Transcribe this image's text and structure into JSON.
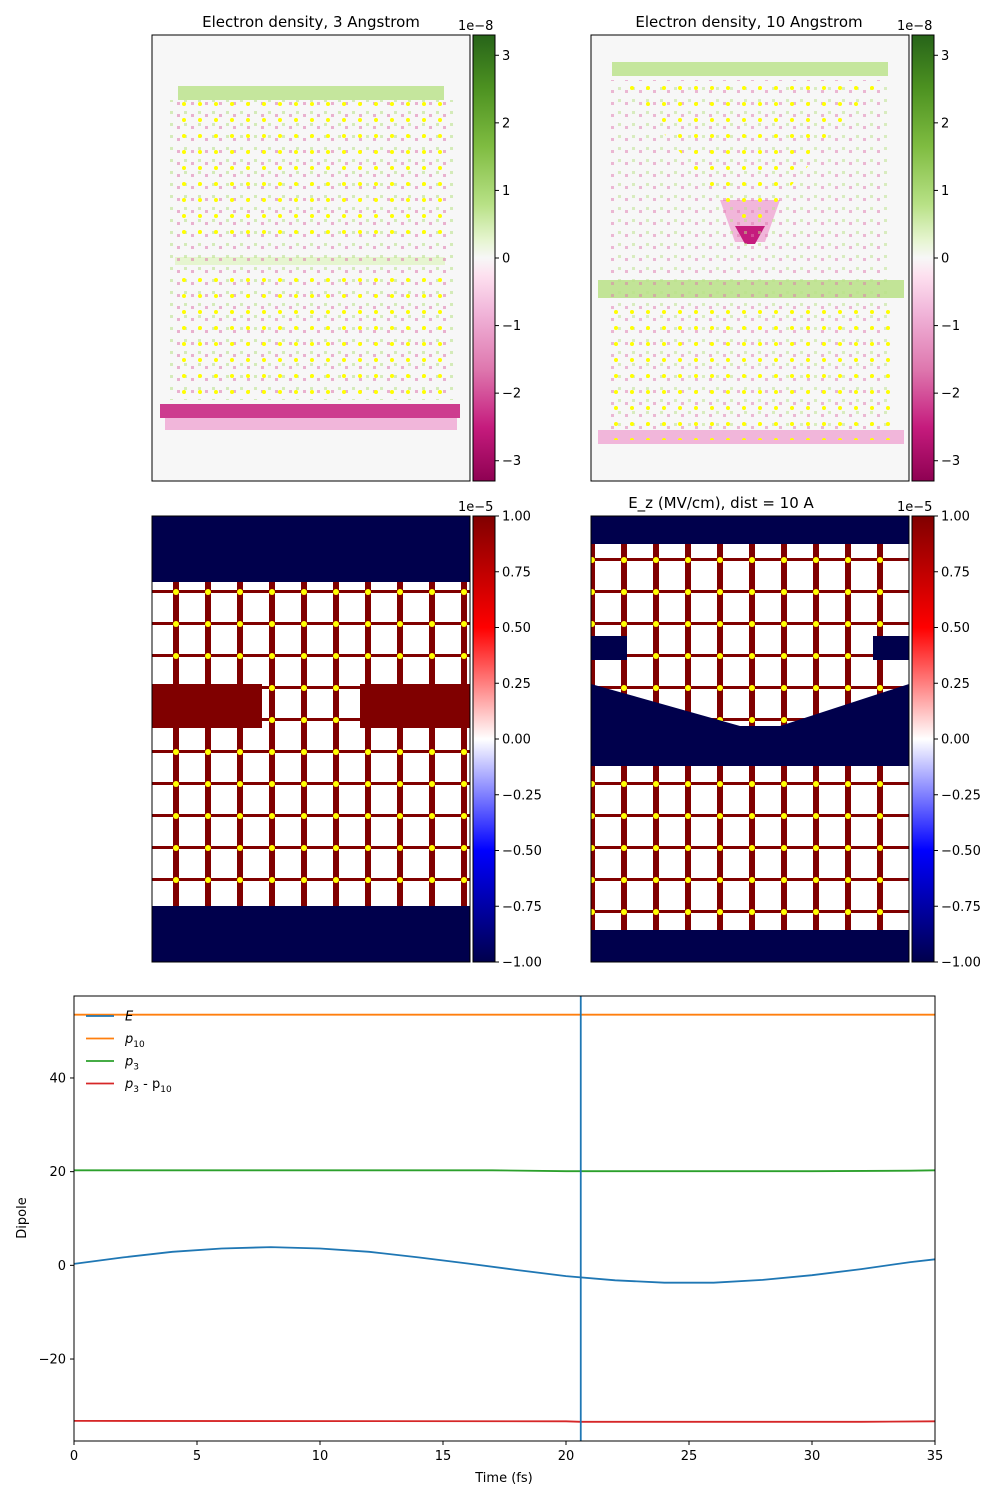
{
  "colors": {
    "axis": "#000000",
    "E": "#1f77b4",
    "p10": "#ff7f0e",
    "p3": "#2ca02c",
    "diff": "#d62728",
    "marker_line": "#1f77b4",
    "atom": "#ffff00"
  },
  "chart_data": [
    {
      "type": "heatmap",
      "panel": "density-3",
      "title": "Electron density, 3 Angstrom",
      "colormap": "PiYG",
      "colorbar": {
        "exponent": "1e−8",
        "range": [
          -3.3,
          3.3
        ],
        "ticks": [
          -3,
          -2,
          -1,
          0,
          1,
          2,
          3
        ],
        "tick_labels": [
          "−3",
          "−2",
          "−1",
          "0",
          "1",
          "2",
          "3"
        ]
      }
    },
    {
      "type": "heatmap",
      "panel": "density-10",
      "title": "Electron density, 10 Angstrom",
      "colormap": "PiYG",
      "colorbar": {
        "exponent": "1e−8",
        "range": [
          -3.3,
          3.3
        ],
        "ticks": [
          -3,
          -2,
          -1,
          0,
          1,
          2,
          3
        ],
        "tick_labels": [
          "−3",
          "−2",
          "−1",
          "0",
          "1",
          "2",
          "3"
        ]
      }
    },
    {
      "type": "heatmap",
      "panel": "field-3",
      "title": "",
      "colormap": "seismic",
      "colorbar": {
        "exponent": "1e−5",
        "range": [
          -1,
          1
        ],
        "ticks": [
          -1,
          -0.75,
          -0.5,
          -0.25,
          0,
          0.25,
          0.5,
          0.75,
          1
        ],
        "tick_labels": [
          "−1.00",
          "−0.75",
          "−0.50",
          "−0.25",
          "0.00",
          "0.25",
          "0.50",
          "0.75",
          "1.00"
        ]
      }
    },
    {
      "type": "heatmap",
      "panel": "field-10",
      "title": "E_z (MV/cm), dist = 10 A",
      "colormap": "seismic",
      "colorbar": {
        "exponent": "1e−5",
        "range": [
          -1,
          1
        ],
        "ticks": [
          -1,
          -0.75,
          -0.5,
          -0.25,
          0,
          0.25,
          0.5,
          0.75,
          1
        ],
        "tick_labels": [
          "−1.00",
          "−0.75",
          "−0.50",
          "−0.25",
          "0.00",
          "0.25",
          "0.50",
          "0.75",
          "1.00"
        ]
      }
    },
    {
      "type": "line",
      "title": "",
      "xlabel": "Time (fs)",
      "ylabel": "Dipole",
      "xlim": [
        0,
        35
      ],
      "ylim": [
        -37.5,
        57.5
      ],
      "xticks": [
        0,
        5,
        10,
        15,
        20,
        25,
        30,
        35
      ],
      "xtick_labels": [
        "0",
        "5",
        "10",
        "15",
        "20",
        "25",
        "30",
        "35"
      ],
      "yticks": [
        -20,
        0,
        20,
        40
      ],
      "ytick_labels": [
        "−20",
        "0",
        "20",
        "40"
      ],
      "vline_x": 20.6,
      "legend_position": "top-left",
      "series": [
        {
          "name": "E",
          "legend": {
            "main": "E",
            "sub": ""
          },
          "color_key": "E",
          "x": [
            0,
            2,
            4,
            6,
            8,
            10,
            12,
            14,
            16,
            18,
            20,
            22,
            24,
            26,
            28,
            30,
            32,
            34,
            35
          ],
          "y": [
            0.3,
            1.7,
            2.9,
            3.6,
            3.9,
            3.6,
            2.9,
            1.7,
            0.4,
            -1.0,
            -2.3,
            -3.2,
            -3.7,
            -3.7,
            -3.1,
            -2.1,
            -0.8,
            0.7,
            1.3
          ]
        },
        {
          "name": "p_10",
          "legend": {
            "main": "p",
            "sub": "10"
          },
          "color_key": "p10",
          "x": [
            0,
            35
          ],
          "y": [
            53.5,
            53.5
          ]
        },
        {
          "name": "p_3",
          "legend": {
            "main": "p",
            "sub": "3"
          },
          "color_key": "p3",
          "x": [
            0,
            17,
            20,
            30,
            34,
            35
          ],
          "y": [
            20.3,
            20.3,
            20.1,
            20.1,
            20.2,
            20.3
          ]
        },
        {
          "name": "p_3 - p_10",
          "legend": {
            "main": "p",
            "sub": "3",
            "mid": " - p",
            "sub2": "10"
          },
          "color_key": "diff",
          "x": [
            0,
            20,
            20.6,
            32,
            35
          ],
          "y": [
            -33.2,
            -33.3,
            -33.4,
            -33.4,
            -33.3
          ]
        }
      ]
    }
  ]
}
